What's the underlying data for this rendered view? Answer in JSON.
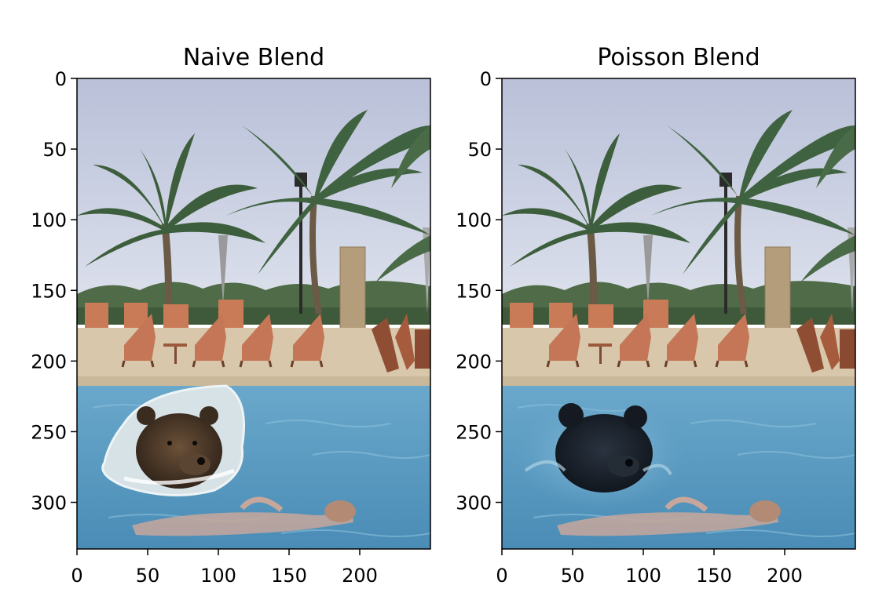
{
  "panels": [
    {
      "id": "naive",
      "title": "Naive Blend",
      "x_ticks": [
        0,
        50,
        100,
        150,
        200
      ],
      "y_ticks": [
        0,
        50,
        100,
        150,
        200,
        250,
        300
      ],
      "x_range": [
        0,
        250
      ],
      "y_range": [
        0,
        333
      ],
      "bear_style": "naive"
    },
    {
      "id": "poisson",
      "title": "Poisson Blend",
      "x_ticks": [
        0,
        50,
        100,
        150,
        200
      ],
      "y_ticks": [
        0,
        50,
        100,
        150,
        200,
        250,
        300
      ],
      "x_range": [
        0,
        250
      ],
      "y_range": [
        0,
        333
      ],
      "bear_style": "poisson"
    }
  ],
  "colors": {
    "sky_top": "#b9c0d8",
    "sky_bottom": "#d6dbe8",
    "pool": "#5f9ec2",
    "pool_deep": "#4c8fb9",
    "deck": "#d8c7ab",
    "chair": "#c97b57",
    "palm_green": "#3d5e3c",
    "trunk": "#6b5a45",
    "bear_naive": "#3b2c20",
    "bear_poisson": "#151a22",
    "patch_naive": "#d6e2e6",
    "swimmer": "#c7a79b"
  }
}
